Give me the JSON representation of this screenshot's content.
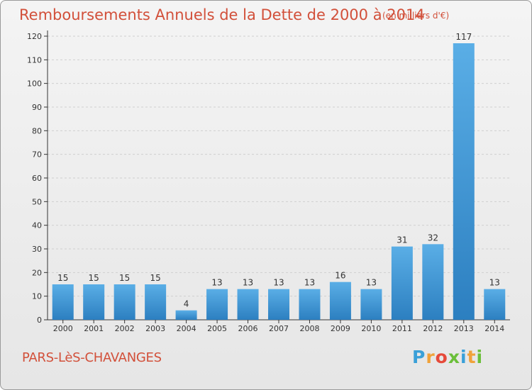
{
  "header": {
    "title": "Remboursements Annuels de la Dette de 2000 à 2014",
    "unit": "(en milliers d'€)"
  },
  "footer": {
    "commune": "PARS-LèS-CHAVANGES",
    "logo": "Proxiti"
  },
  "colors": {
    "title": "#d2503a",
    "bar_light": "#5aaee6",
    "bar_dark": "#2c7fc0",
    "background": "#ececec"
  },
  "chart_data": {
    "type": "bar",
    "title": "Remboursements Annuels de la Dette de 2000 à 2014",
    "xlabel": "",
    "ylabel": "",
    "categories": [
      "2000",
      "2001",
      "2002",
      "2003",
      "2004",
      "2005",
      "2006",
      "2007",
      "2008",
      "2009",
      "2010",
      "2011",
      "2012",
      "2013",
      "2014"
    ],
    "values": [
      15,
      15,
      15,
      15,
      4,
      13,
      13,
      13,
      13,
      16,
      13,
      31,
      32,
      117,
      13
    ],
    "ylim": [
      0,
      120
    ],
    "yticks": [
      0,
      10,
      20,
      30,
      40,
      50,
      60,
      70,
      80,
      90,
      100,
      110,
      120
    ],
    "grid": true,
    "data_labels": true
  }
}
